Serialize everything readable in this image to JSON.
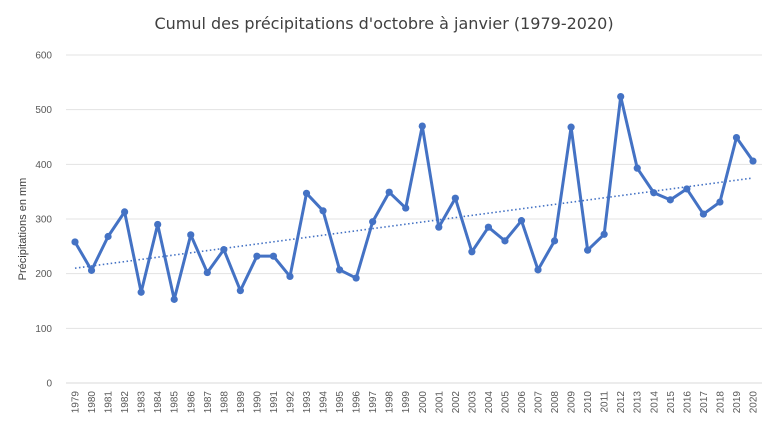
{
  "chart_data": {
    "type": "line",
    "title": "Cumul des précipitations d'octobre à janvier (1979-2020)",
    "xlabel": "",
    "ylabel": "Précipitations en mm",
    "ylim": [
      0,
      600
    ],
    "yticks": [
      "0",
      "100",
      "200",
      "300",
      "400",
      "500",
      "600"
    ],
    "grid": true,
    "legend": "none",
    "trendline": {
      "style": "dotted",
      "type": "linear",
      "start": 210,
      "end": 375
    },
    "categories": [
      "1979",
      "1980",
      "1981",
      "1982",
      "1983",
      "1984",
      "1985",
      "1986",
      "1987",
      "1988",
      "1989",
      "1990",
      "1991",
      "1992",
      "1993",
      "1994",
      "1995",
      "1996",
      "1997",
      "1998",
      "1999",
      "2000",
      "2001",
      "2002",
      "2003",
      "2004",
      "2005",
      "2006",
      "2007",
      "2008",
      "2009",
      "2010",
      "2011",
      "2012",
      "2013",
      "2014",
      "2015",
      "2016",
      "2017",
      "2018",
      "2019",
      "2020"
    ],
    "series": [
      {
        "values": [
          258,
          206,
          268,
          313,
          166,
          290,
          153,
          271,
          202,
          244,
          169,
          232,
          232,
          195,
          347,
          315,
          207,
          192,
          295,
          349,
          320,
          470,
          285,
          338,
          240,
          285,
          260,
          297,
          207,
          260,
          468,
          243,
          272,
          524,
          393,
          348,
          335,
          355,
          309,
          331,
          449,
          406
        ],
        "color": "#4472C4"
      }
    ]
  }
}
